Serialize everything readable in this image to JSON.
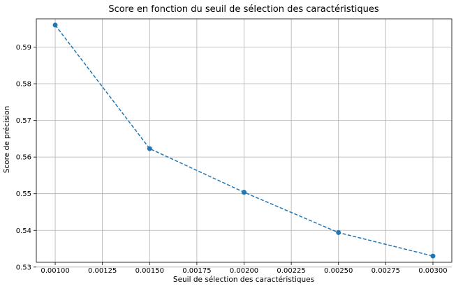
{
  "chart_data": {
    "type": "line",
    "title": "Score en fonction du seuil de sélection des caractéristiques",
    "xlabel": "Seuil de sélection des caractéristiques",
    "ylabel": "Score de précision",
    "x": [
      0.001,
      0.0015,
      0.002,
      0.0025,
      0.003
    ],
    "series": [
      {
        "values": [
          0.596,
          0.5623,
          0.5504,
          0.5394,
          0.533
        ]
      }
    ],
    "xlim": [
      0.0009,
      0.0031
    ],
    "ylim": [
      0.5313,
      0.5977
    ],
    "xticks": [
      "0.00100",
      "0.00125",
      "0.00150",
      "0.00175",
      "0.00200",
      "0.00225",
      "0.00250",
      "0.00275",
      "0.00300"
    ],
    "xtick_values": [
      0.001,
      0.00125,
      0.0015,
      0.00175,
      0.002,
      0.00225,
      0.0025,
      0.00275,
      0.003
    ],
    "yticks": [
      "0.53",
      "0.54",
      "0.55",
      "0.56",
      "0.57",
      "0.58",
      "0.59"
    ],
    "ytick_values": [
      0.53,
      0.54,
      0.55,
      0.56,
      0.57,
      0.58,
      0.59
    ],
    "grid": true,
    "line_style": "dashed",
    "marker": "circle",
    "colors": {
      "series": "#1f77b4",
      "grid": "#b0b0b0",
      "axes": "#000000"
    }
  }
}
